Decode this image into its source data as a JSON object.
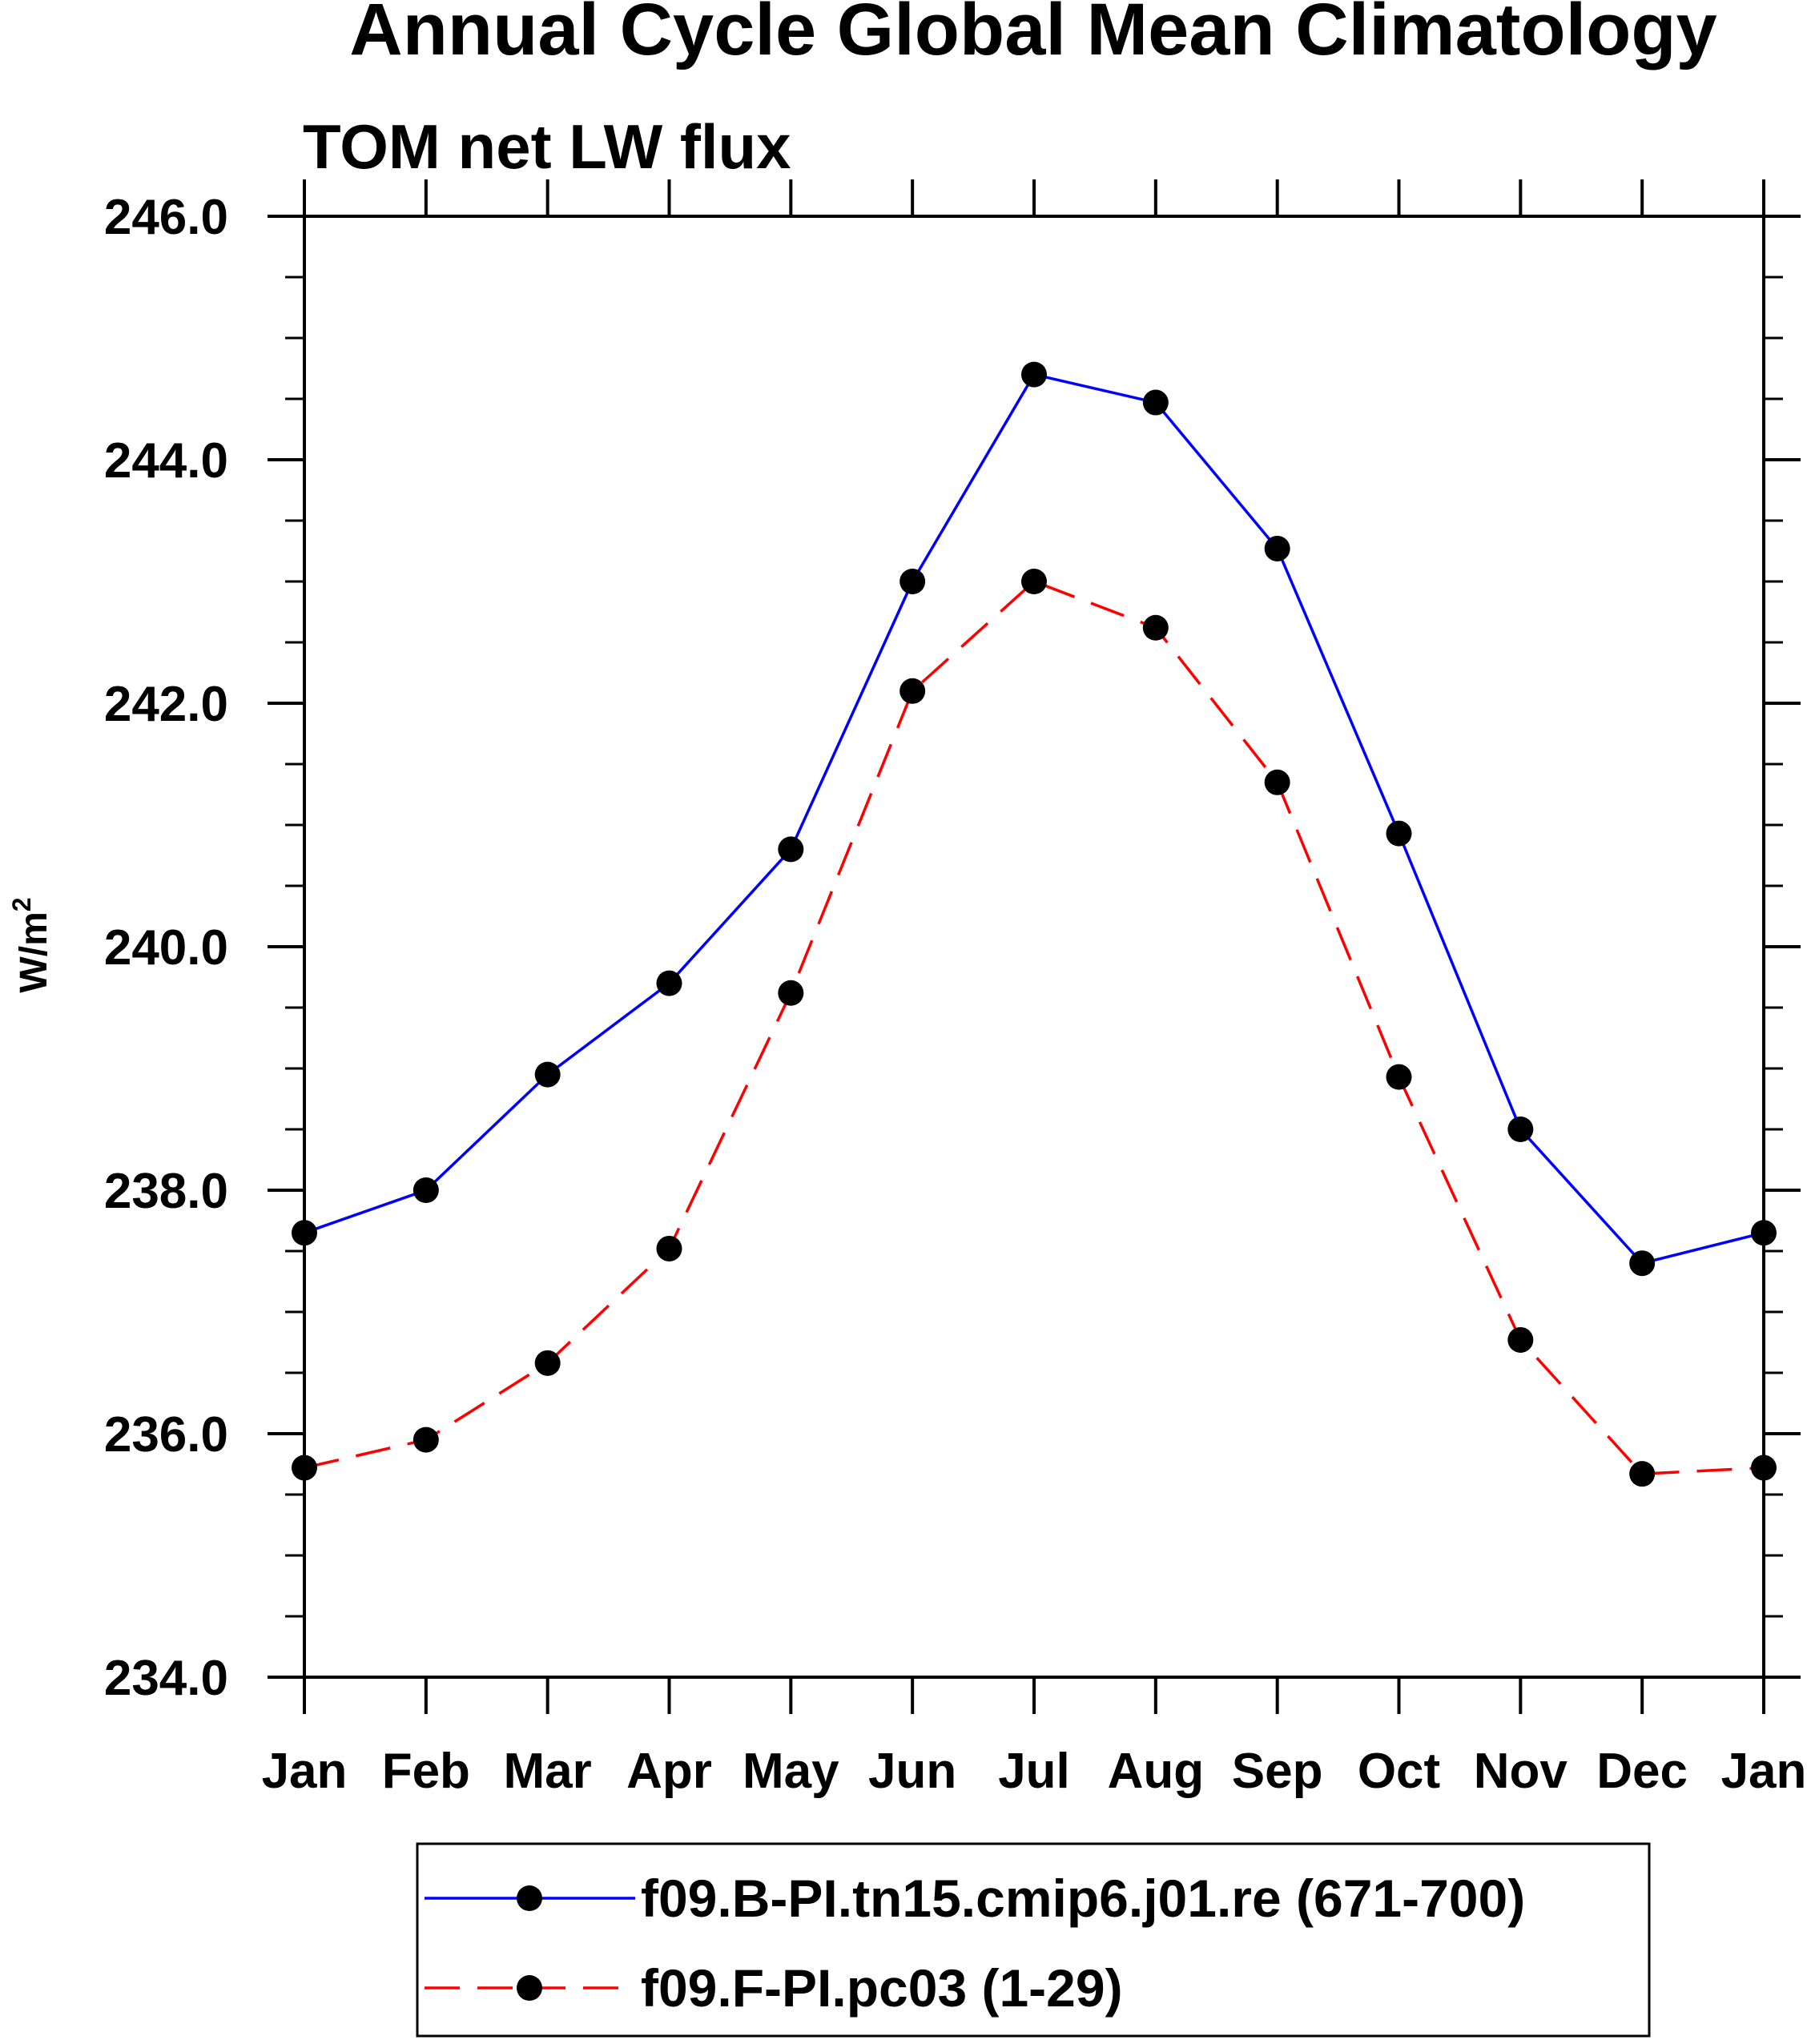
{
  "chart_data": {
    "type": "line",
    "title": "Annual Cycle Global Mean Climatology",
    "subtitle": "TOM net LW flux",
    "ylabel": "W/m",
    "ylabel_superscript": "2",
    "ylim": [
      234.0,
      246.0
    ],
    "yticks": [
      "234.0",
      "236.0",
      "238.0",
      "240.0",
      "242.0",
      "244.0",
      "246.0"
    ],
    "categories": [
      "Jan",
      "Feb",
      "Mar",
      "Apr",
      "May",
      "Jun",
      "Jul",
      "Aug",
      "Sep",
      "Oct",
      "Nov",
      "Dec",
      "Jan"
    ],
    "series": [
      {
        "name": "f09.B-PI.tn15.cmip6.j01.re (671-700)",
        "color": "#0000ff",
        "dash": "solid",
        "values": [
          237.65,
          238.0,
          238.95,
          239.7,
          240.8,
          243.0,
          244.7,
          244.47,
          243.27,
          240.93,
          238.5,
          237.4,
          237.65
        ]
      },
      {
        "name": "f09.F-PI.pc03 (1-29)",
        "color": "#ff0000",
        "dash": "dashed",
        "values": [
          235.72,
          235.95,
          236.58,
          237.52,
          239.62,
          242.1,
          243.0,
          242.62,
          241.35,
          238.93,
          236.77,
          235.67,
          235.72
        ]
      }
    ],
    "grid": false,
    "legend_position": "bottom"
  }
}
